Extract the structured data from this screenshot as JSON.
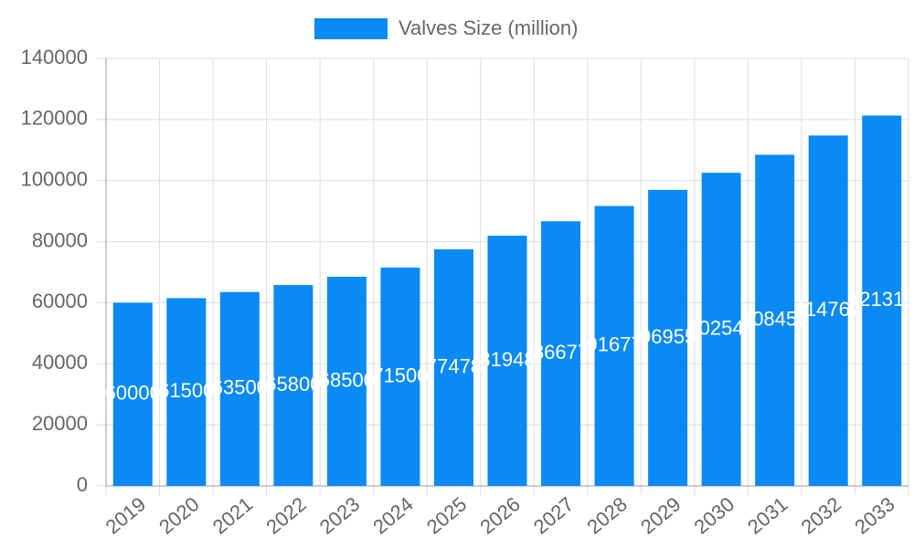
{
  "chart_data": {
    "type": "bar",
    "categories": [
      "2019",
      "2020",
      "2021",
      "2022",
      "2023",
      "2024",
      "2025",
      "2026",
      "2027",
      "2028",
      "2029",
      "2030",
      "2031",
      "2032",
      "2033"
    ],
    "series": [
      {
        "name": "Valves Size (million)",
        "color": "#0a8af5",
        "values": [
          60000,
          61500,
          63500,
          65800,
          68500,
          71500,
          77478,
          81948,
          86677,
          91677,
          96955,
          102543,
          108455,
          114767,
          121313
        ]
      }
    ],
    "ylim": [
      0,
      140000
    ],
    "yticks": [
      0,
      20000,
      40000,
      60000,
      80000,
      100000,
      120000,
      140000
    ],
    "grid": true,
    "legend": "top"
  }
}
